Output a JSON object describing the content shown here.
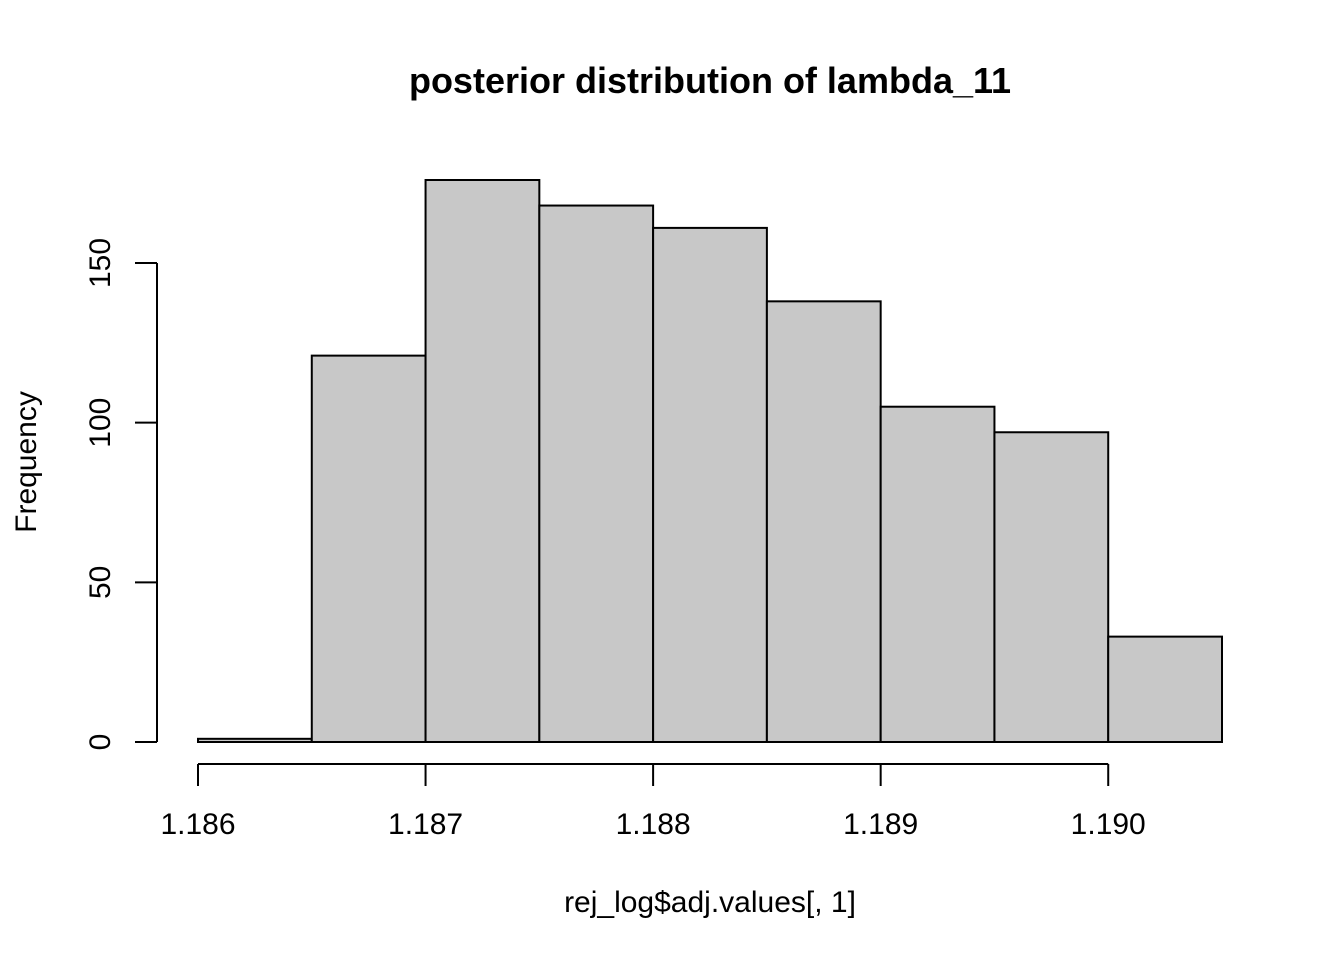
{
  "chart_data": {
    "type": "bar",
    "subtype": "histogram",
    "title": "posterior distribution of lambda_11",
    "xlabel": "rej_log$adj.values[, 1]",
    "ylabel": "Frequency",
    "bins": [
      {
        "start": 1.186,
        "end": 1.1865,
        "count": 1
      },
      {
        "start": 1.1865,
        "end": 1.187,
        "count": 121
      },
      {
        "start": 1.187,
        "end": 1.1875,
        "count": 176
      },
      {
        "start": 1.1875,
        "end": 1.188,
        "count": 168
      },
      {
        "start": 1.188,
        "end": 1.1885,
        "count": 161
      },
      {
        "start": 1.1885,
        "end": 1.189,
        "count": 138
      },
      {
        "start": 1.189,
        "end": 1.1895,
        "count": 105
      },
      {
        "start": 1.1895,
        "end": 1.19,
        "count": 97
      },
      {
        "start": 1.19,
        "end": 1.1905,
        "count": 33
      }
    ],
    "xlim": [
      1.186,
      1.1905
    ],
    "ylim": [
      0,
      176
    ],
    "x_ticks": [
      1.186,
      1.187,
      1.188,
      1.189,
      1.19
    ],
    "x_tick_labels": [
      "1.186",
      "1.187",
      "1.188",
      "1.189",
      "1.190"
    ],
    "y_ticks": [
      0,
      50,
      100,
      150
    ],
    "y_tick_labels": [
      "0",
      "50",
      "100",
      "150"
    ],
    "bar_color": "#c8c8c8",
    "grid": false
  }
}
